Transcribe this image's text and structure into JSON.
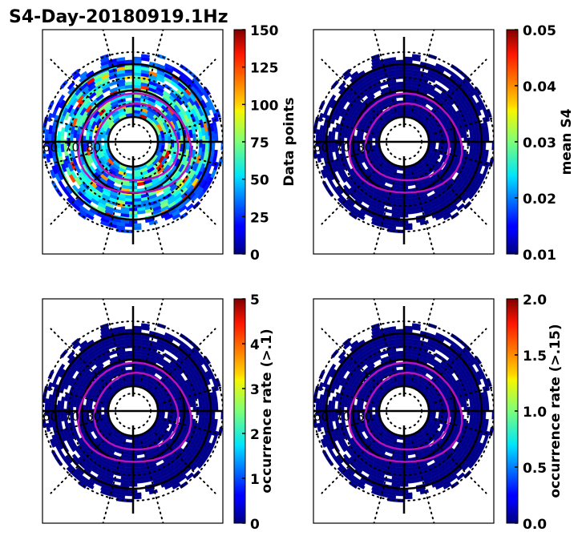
{
  "chart_data": {
    "type": "heatmap",
    "title": "S4-Day-20180919.1Hz",
    "projection": "polar (magnetic latitude / MLT)",
    "latitude_labels": [
      "60",
      "70",
      "80"
    ],
    "latitude_circles_solid": [
      60,
      70,
      80
    ],
    "panels": [
      {
        "id": "data-points",
        "colorbar_label": "Data points",
        "vmin": 0,
        "vmax": 150,
        "ticks": [
          "0",
          "25",
          "50",
          "75",
          "100",
          "125",
          "150"
        ],
        "colormap": "jet",
        "dominant_value_description": "mixed 10-140, mostly 20-60"
      },
      {
        "id": "mean-s4",
        "colorbar_label": "mean S4",
        "vmin": 0.01,
        "vmax": 0.05,
        "ticks": [
          "0.01",
          "0.02",
          "0.03",
          "0.04",
          "0.05"
        ],
        "colormap": "jet",
        "dominant_value_description": "nearly all bins at ~0.01"
      },
      {
        "id": "occurrence-01",
        "colorbar_label": "occurrence rate (>.1)",
        "vmin": 0,
        "vmax": 5,
        "ticks": [
          "0",
          "1",
          "2",
          "3",
          "4",
          "5"
        ],
        "colormap": "jet",
        "dominant_value_description": "nearly all bins at 0, one small patch ~0.7"
      },
      {
        "id": "occurrence-015",
        "colorbar_label": "occurrence rate (>.15)",
        "vmin": 0,
        "vmax": 2,
        "ticks": [
          "0.0",
          "0.5",
          "1.0",
          "1.5",
          "2.0"
        ],
        "colormap": "jet",
        "dominant_value_description": "nearly all bins at 0, one small patch ~0.6"
      }
    ],
    "overlay": "magenta auroral oval boundaries (2 contours)"
  }
}
